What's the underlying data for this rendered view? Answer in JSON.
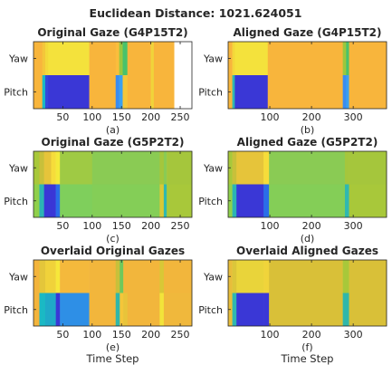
{
  "figure": {
    "title": "Euclidean Distance: 1021.624051"
  },
  "chart_data": [
    {
      "type": "heatmap",
      "title": "Original Gaze (G4P15T2)",
      "caption": "(a)",
      "xlabel": "",
      "rows": [
        "Yaw",
        "Pitch"
      ],
      "xlim": [
        0,
        270
      ],
      "xticks": [
        50,
        100,
        150,
        200,
        250
      ],
      "columns": [
        {
          "x0": 0,
          "x1": 15,
          "yaw": "#f8b53c",
          "pitch": "#f8b53c"
        },
        {
          "x0": 15,
          "x1": 20,
          "yaw": "#f4c63a",
          "pitch": "#1ab9c4"
        },
        {
          "x0": 20,
          "x1": 25,
          "yaw": "#f3d93a",
          "pitch": "#3547d9"
        },
        {
          "x0": 25,
          "x1": 95,
          "yaw": "#f4e23c",
          "pitch": "#3a37d6"
        },
        {
          "x0": 95,
          "x1": 140,
          "yaw": "#f8b53c",
          "pitch": "#f8b53c"
        },
        {
          "x0": 140,
          "x1": 146,
          "yaw": "#fabd3c",
          "pitch": "#3a8cf0"
        },
        {
          "x0": 146,
          "x1": 152,
          "yaw": "#9bc73e",
          "pitch": "#3aa0f0"
        },
        {
          "x0": 152,
          "x1": 160,
          "yaw": "#49c26b",
          "pitch": "#f4c63a"
        },
        {
          "x0": 160,
          "x1": 200,
          "yaw": "#f8b53c",
          "pitch": "#f8b53c"
        },
        {
          "x0": 200,
          "x1": 205,
          "yaw": "#f0d43a",
          "pitch": "#f0d43a"
        },
        {
          "x0": 205,
          "x1": 240,
          "yaw": "#f8b53c",
          "pitch": "#f8b53c"
        },
        {
          "x0": 240,
          "x1": 270,
          "yaw": "#ffffff",
          "pitch": "#ffffff"
        }
      ]
    },
    {
      "type": "heatmap",
      "title": "Aligned Gaze (G4P15T2)",
      "caption": "(b)",
      "xlabel": "",
      "rows": [
        "Yaw",
        "Pitch"
      ],
      "xlim": [
        0,
        380
      ],
      "xticks": [
        100,
        200,
        300
      ],
      "columns": [
        {
          "x0": 0,
          "x1": 10,
          "yaw": "#f8b53c",
          "pitch": "#f8b53c"
        },
        {
          "x0": 10,
          "x1": 16,
          "yaw": "#f4d73a",
          "pitch": "#2fb8b0"
        },
        {
          "x0": 16,
          "x1": 95,
          "yaw": "#f4e23c",
          "pitch": "#3a37d6"
        },
        {
          "x0": 95,
          "x1": 275,
          "yaw": "#f8b53c",
          "pitch": "#f8b53c"
        },
        {
          "x0": 275,
          "x1": 283,
          "yaw": "#9bc73e",
          "pitch": "#3a8cf0"
        },
        {
          "x0": 283,
          "x1": 290,
          "yaw": "#49c26b",
          "pitch": "#3aa0f0"
        },
        {
          "x0": 290,
          "x1": 380,
          "yaw": "#f8b53c",
          "pitch": "#f8b53c"
        }
      ]
    },
    {
      "type": "heatmap",
      "title": "Original Gaze (G5P2T2)",
      "caption": "(c)",
      "xlabel": "",
      "rows": [
        "Yaw",
        "Pitch"
      ],
      "xlim": [
        0,
        270
      ],
      "xticks": [
        50,
        100,
        150,
        200,
        250
      ],
      "columns": [
        {
          "x0": 0,
          "x1": 10,
          "yaw": "#a8c83a",
          "pitch": "#8fd04b"
        },
        {
          "x0": 10,
          "x1": 18,
          "yaw": "#c8c03a",
          "pitch": "#2bb4b4"
        },
        {
          "x0": 18,
          "x1": 30,
          "yaw": "#e6c43a",
          "pitch": "#3a37d6"
        },
        {
          "x0": 30,
          "x1": 38,
          "yaw": "#f6dc3a",
          "pitch": "#3a37d6"
        },
        {
          "x0": 38,
          "x1": 45,
          "yaw": "#f3ea3a",
          "pitch": "#2a6ee8"
        },
        {
          "x0": 45,
          "x1": 100,
          "yaw": "#9fca44",
          "pitch": "#7fcf5c"
        },
        {
          "x0": 100,
          "x1": 215,
          "yaw": "#8acb54",
          "pitch": "#84ce57"
        },
        {
          "x0": 215,
          "x1": 222,
          "yaw": "#a5c63c",
          "pitch": "#d8c836"
        },
        {
          "x0": 222,
          "x1": 227,
          "yaw": "#8acb54",
          "pitch": "#2fb8b0"
        },
        {
          "x0": 227,
          "x1": 270,
          "yaw": "#a5c63c",
          "pitch": "#a8c83a"
        }
      ]
    },
    {
      "type": "heatmap",
      "title": "Aligned Gaze (G5P2T2)",
      "caption": "(d)",
      "xlabel": "",
      "rows": [
        "Yaw",
        "Pitch"
      ],
      "xlim": [
        0,
        380
      ],
      "xticks": [
        100,
        200,
        300
      ],
      "columns": [
        {
          "x0": 0,
          "x1": 10,
          "yaw": "#a8c83a",
          "pitch": "#8fd04b"
        },
        {
          "x0": 10,
          "x1": 20,
          "yaw": "#c8c03a",
          "pitch": "#2bb4b4"
        },
        {
          "x0": 20,
          "x1": 85,
          "yaw": "#e6c43a",
          "pitch": "#3a37d6"
        },
        {
          "x0": 85,
          "x1": 98,
          "yaw": "#f6dc3a",
          "pitch": "#2a6ee8"
        },
        {
          "x0": 98,
          "x1": 280,
          "yaw": "#8acb54",
          "pitch": "#84ce57"
        },
        {
          "x0": 280,
          "x1": 290,
          "yaw": "#a5c63c",
          "pitch": "#2fb8b0"
        },
        {
          "x0": 290,
          "x1": 380,
          "yaw": "#a5c63c",
          "pitch": "#a8c83a"
        }
      ]
    },
    {
      "type": "heatmap",
      "title": "Overlaid Original Gazes",
      "caption": "(e)",
      "xlabel": "Time Step",
      "rows": [
        "Yaw",
        "Pitch"
      ],
      "xlim": [
        0,
        270
      ],
      "xticks": [
        50,
        100,
        150,
        200,
        250
      ],
      "columns": [
        {
          "x0": 0,
          "x1": 10,
          "yaw": "#f3b43c",
          "pitch": "#f3b43c"
        },
        {
          "x0": 10,
          "x1": 20,
          "yaw": "#e4c63a",
          "pitch": "#1ab9c4"
        },
        {
          "x0": 20,
          "x1": 38,
          "yaw": "#f0d23a",
          "pitch": "#1fa9c8"
        },
        {
          "x0": 38,
          "x1": 45,
          "yaw": "#f6e73a",
          "pitch": "#3a37d6"
        },
        {
          "x0": 45,
          "x1": 95,
          "yaw": "#f4b93c",
          "pitch": "#2e8fe6"
        },
        {
          "x0": 95,
          "x1": 140,
          "yaw": "#f2b63c",
          "pitch": "#f2b63c"
        },
        {
          "x0": 140,
          "x1": 147,
          "yaw": "#c8c03a",
          "pitch": "#30b7aa"
        },
        {
          "x0": 147,
          "x1": 153,
          "yaw": "#6ec95c",
          "pitch": "#f4c63a"
        },
        {
          "x0": 153,
          "x1": 160,
          "yaw": "#f2b63c",
          "pitch": "#e8c43a"
        },
        {
          "x0": 160,
          "x1": 215,
          "yaw": "#f2b63c",
          "pitch": "#f2b63c"
        },
        {
          "x0": 215,
          "x1": 222,
          "yaw": "#d8c836",
          "pitch": "#f2e43a"
        },
        {
          "x0": 222,
          "x1": 270,
          "yaw": "#f2b63c",
          "pitch": "#f0b83c"
        }
      ]
    },
    {
      "type": "heatmap",
      "title": "Overlaid Aligned Gazes",
      "caption": "(f)",
      "xlabel": "Time Step",
      "rows": [
        "Yaw",
        "Pitch"
      ],
      "xlim": [
        0,
        380
      ],
      "xticks": [
        100,
        200,
        300
      ],
      "columns": [
        {
          "x0": 0,
          "x1": 10,
          "yaw": "#e8bd3a",
          "pitch": "#e8bd3a"
        },
        {
          "x0": 10,
          "x1": 20,
          "yaw": "#dcc63a",
          "pitch": "#2fb8b0"
        },
        {
          "x0": 20,
          "x1": 85,
          "yaw": "#e9d43a",
          "pitch": "#3a37d6"
        },
        {
          "x0": 85,
          "x1": 98,
          "yaw": "#f0d43a",
          "pitch": "#3a37d6"
        },
        {
          "x0": 98,
          "x1": 275,
          "yaw": "#d9c038",
          "pitch": "#d9c038"
        },
        {
          "x0": 275,
          "x1": 290,
          "yaw": "#a8c83a",
          "pitch": "#30b7aa"
        },
        {
          "x0": 290,
          "x1": 380,
          "yaw": "#d9c038",
          "pitch": "#d9c038"
        }
      ]
    }
  ]
}
